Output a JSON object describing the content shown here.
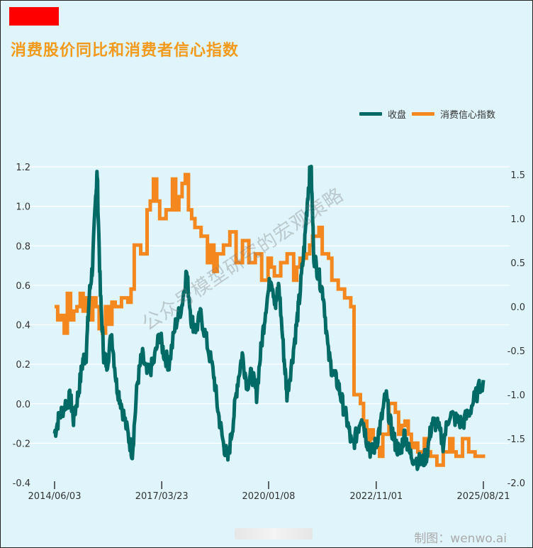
{
  "title": "消费股价同比和消费者信心指数",
  "footer": "制图：wenwo.ai",
  "watermark": "公众号模型研究的宏观策略",
  "colors": {
    "series1": "#006b66",
    "series2": "#f5871f",
    "title": "#f29a1c",
    "background": "#dff5fb",
    "badge": "#ff0000"
  },
  "chart_data": {
    "type": "line",
    "legend_position": "top-right",
    "grid": "horizontal",
    "x_ticks": [
      "2014/06/03",
      "2017/03/23",
      "2020/01/08",
      "2022/11/01",
      "2025/08/21"
    ],
    "y_left": {
      "ticks": [
        "1.2",
        "1.0",
        "0.8",
        "0.6",
        "0.4",
        "0.2",
        "0.0",
        "-0.2",
        "-0.4"
      ],
      "range": [
        -0.4,
        1.2
      ]
    },
    "y_right": {
      "ticks": [
        "1.5",
        "1.0",
        "0.5",
        "0.0",
        "-0.5",
        "-1.0",
        "-1.5",
        "-2.0"
      ],
      "range": [
        -2.0,
        1.6
      ]
    },
    "series": [
      {
        "name": "收盘",
        "axis": "left",
        "points": [
          [
            "2014/06/03",
            -0.15
          ],
          [
            "2014/07/15",
            -0.07
          ],
          [
            "2014/09/15",
            0.0
          ],
          [
            "2014/11/01",
            0.03
          ],
          [
            "2014/12/01",
            -0.08
          ],
          [
            "2015/01/15",
            0.05
          ],
          [
            "2015/03/01",
            0.22
          ],
          [
            "2015/04/01",
            0.25
          ],
          [
            "2015/05/01",
            0.55
          ],
          [
            "2015/06/01",
            0.7
          ],
          [
            "2015/07/01",
            1.05
          ],
          [
            "2015/07/15",
            1.17
          ],
          [
            "2015/08/15",
            0.55
          ],
          [
            "2015/09/15",
            0.25
          ],
          [
            "2015/10/15",
            0.2
          ],
          [
            "2015/12/01",
            0.35
          ],
          [
            "2016/01/15",
            0.1
          ],
          [
            "2016/03/01",
            0.0
          ],
          [
            "2016/05/01",
            -0.15
          ],
          [
            "2016/06/15",
            -0.25
          ],
          [
            "2016/08/01",
            0.1
          ],
          [
            "2016/09/15",
            0.25
          ],
          [
            "2016/11/01",
            0.15
          ],
          [
            "2017/01/01",
            0.2
          ],
          [
            "2017/03/01",
            0.35
          ],
          [
            "2017/04/15",
            0.25
          ],
          [
            "2017/06/01",
            0.2
          ],
          [
            "2017/08/01",
            0.4
          ],
          [
            "2017/10/01",
            0.5
          ],
          [
            "2017/11/15",
            0.67
          ],
          [
            "2018/01/01",
            0.42
          ],
          [
            "2018/02/15",
            0.38
          ],
          [
            "2018/04/01",
            0.45
          ],
          [
            "2018/06/01",
            0.3
          ],
          [
            "2018/08/01",
            0.15
          ],
          [
            "2018/09/15",
            -0.05
          ],
          [
            "2018/11/01",
            -0.2
          ],
          [
            "2018/12/15",
            -0.28
          ],
          [
            "2019/02/01",
            -0.1
          ],
          [
            "2019/03/15",
            0.1
          ],
          [
            "2019/05/01",
            0.25
          ],
          [
            "2019/06/15",
            0.1
          ],
          [
            "2019/08/01",
            0.15
          ],
          [
            "2019/09/15",
            0.05
          ],
          [
            "2019/11/01",
            0.3
          ],
          [
            "2019/12/15",
            0.5
          ],
          [
            "2020/02/01",
            0.65
          ],
          [
            "2020/03/15",
            0.5
          ],
          [
            "2020/04/15",
            0.6
          ],
          [
            "2020/06/01",
            0.25
          ],
          [
            "2020/07/01",
            0.05
          ],
          [
            "2020/08/15",
            0.2
          ],
          [
            "2020/10/01",
            0.4
          ],
          [
            "2020/11/01",
            0.55
          ],
          [
            "2020/12/15",
            0.8
          ],
          [
            "2021/01/15",
            1.05
          ],
          [
            "2021/02/15",
            1.22
          ],
          [
            "2021/03/15",
            0.75
          ],
          [
            "2021/05/01",
            0.65
          ],
          [
            "2021/06/15",
            0.55
          ],
          [
            "2021/08/01",
            0.25
          ],
          [
            "2021/09/15",
            0.15
          ],
          [
            "2021/11/01",
            0.1
          ],
          [
            "2021/12/15",
            0.0
          ],
          [
            "2022/02/01",
            -0.1
          ],
          [
            "2022/03/15",
            -0.22
          ],
          [
            "2022/05/01",
            -0.15
          ],
          [
            "2022/06/15",
            -0.05
          ],
          [
            "2022/08/01",
            -0.18
          ],
          [
            "2022/09/15",
            -0.25
          ],
          [
            "2022/11/01",
            -0.2
          ],
          [
            "2022/12/15",
            -0.1
          ],
          [
            "2023/02/01",
            0.05
          ],
          [
            "2023/03/15",
            -0.1
          ],
          [
            "2023/05/01",
            -0.2
          ],
          [
            "2023/06/15",
            -0.25
          ],
          [
            "2023/08/01",
            -0.15
          ],
          [
            "2023/09/15",
            -0.25
          ],
          [
            "2023/11/01",
            -0.28
          ],
          [
            "2024/01/15",
            -0.3
          ],
          [
            "2024/03/01",
            -0.25
          ],
          [
            "2024/04/15",
            -0.1
          ],
          [
            "2024/06/01",
            -0.1
          ],
          [
            "2024/08/01",
            -0.2
          ],
          [
            "2024/10/01",
            -0.05
          ],
          [
            "2024/12/01",
            -0.08
          ],
          [
            "2025/02/01",
            -0.1
          ],
          [
            "2025/04/01",
            -0.05
          ],
          [
            "2025/06/01",
            0.03
          ],
          [
            "2025/08/21",
            0.12
          ]
        ]
      },
      {
        "name": "消费信心指数",
        "axis": "right",
        "steps": [
          [
            "2014/06/03",
            0.0
          ],
          [
            "2014/07/03",
            -0.15
          ],
          [
            "2014/08/03",
            -0.1
          ],
          [
            "2014/09/03",
            -0.3
          ],
          [
            "2014/10/03",
            0.15
          ],
          [
            "2014/11/03",
            -0.15
          ],
          [
            "2014/12/03",
            -0.05
          ],
          [
            "2015/01/03",
            0.0
          ],
          [
            "2015/02/03",
            0.15
          ],
          [
            "2015/03/03",
            -0.05
          ],
          [
            "2015/04/03",
            0.1
          ],
          [
            "2015/05/03",
            -0.15
          ],
          [
            "2015/06/03",
            0.1
          ],
          [
            "2015/07/03",
            0.0
          ],
          [
            "2015/08/03",
            -0.25
          ],
          [
            "2015/09/03",
            -0.3
          ],
          [
            "2015/10/03",
            0.0
          ],
          [
            "2015/11/03",
            -0.2
          ],
          [
            "2015/12/03",
            0.05
          ],
          [
            "2016/01/03",
            0.0
          ],
          [
            "2016/03/03",
            0.1
          ],
          [
            "2016/05/03",
            0.05
          ],
          [
            "2016/06/03",
            0.2
          ],
          [
            "2016/07/03",
            0.7
          ],
          [
            "2016/09/03",
            0.6
          ],
          [
            "2016/11/03",
            1.1
          ],
          [
            "2016/12/03",
            1.2
          ],
          [
            "2017/01/03",
            1.45
          ],
          [
            "2017/02/03",
            1.2
          ],
          [
            "2017/03/03",
            1.0
          ],
          [
            "2017/04/03",
            1.0
          ],
          [
            "2017/05/03",
            1.1
          ],
          [
            "2017/07/03",
            1.45
          ],
          [
            "2017/08/03",
            1.1
          ],
          [
            "2017/09/03",
            1.25
          ],
          [
            "2017/10/03",
            1.4
          ],
          [
            "2017/11/03",
            1.5
          ],
          [
            "2017/12/03",
            1.1
          ],
          [
            "2018/01/03",
            1.0
          ],
          [
            "2018/02/03",
            0.9
          ],
          [
            "2018/04/03",
            0.8
          ],
          [
            "2018/06/03",
            0.5
          ],
          [
            "2018/07/03",
            0.7
          ],
          [
            "2018/08/03",
            0.4
          ],
          [
            "2018/09/03",
            0.6
          ],
          [
            "2018/11/03",
            0.7
          ],
          [
            "2019/01/03",
            0.85
          ],
          [
            "2019/03/03",
            0.5
          ],
          [
            "2019/05/03",
            0.75
          ],
          [
            "2019/07/03",
            0.5
          ],
          [
            "2019/09/03",
            0.6
          ],
          [
            "2019/11/03",
            0.3
          ],
          [
            "2020/01/03",
            0.55
          ],
          [
            "2020/02/03",
            0.45
          ],
          [
            "2020/03/03",
            0.35
          ],
          [
            "2020/05/03",
            0.5
          ],
          [
            "2020/07/03",
            0.6
          ],
          [
            "2020/09/03",
            0.3
          ],
          [
            "2020/10/03",
            0.45
          ],
          [
            "2020/11/03",
            0.55
          ],
          [
            "2021/01/03",
            0.6
          ],
          [
            "2021/02/03",
            0.7
          ],
          [
            "2021/03/03",
            0.8
          ],
          [
            "2021/05/03",
            0.9
          ],
          [
            "2021/06/03",
            0.6
          ],
          [
            "2021/08/03",
            0.55
          ],
          [
            "2021/09/03",
            0.3
          ],
          [
            "2021/11/03",
            0.2
          ],
          [
            "2021/12/03",
            0.2
          ],
          [
            "2022/01/03",
            0.1
          ],
          [
            "2022/03/03",
            0.0
          ],
          [
            "2022/04/03",
            -1.0
          ],
          [
            "2022/06/03",
            -1.1
          ],
          [
            "2022/07/03",
            -1.3
          ],
          [
            "2022/08/03",
            -1.55
          ],
          [
            "2022/09/03",
            -1.4
          ],
          [
            "2022/10/03",
            -1.5
          ],
          [
            "2022/11/03",
            -1.6
          ],
          [
            "2022/12/03",
            -1.7
          ],
          [
            "2023/01/03",
            -1.45
          ],
          [
            "2023/03/03",
            -1.1
          ],
          [
            "2023/05/03",
            -1.2
          ],
          [
            "2023/06/03",
            -1.45
          ],
          [
            "2023/07/03",
            -1.35
          ],
          [
            "2023/08/03",
            -1.3
          ],
          [
            "2023/09/03",
            -1.45
          ],
          [
            "2023/10/03",
            -1.6
          ],
          [
            "2023/11/03",
            -1.55
          ],
          [
            "2023/12/03",
            -1.65
          ],
          [
            "2024/02/03",
            -1.5
          ],
          [
            "2024/03/03",
            -1.65
          ],
          [
            "2024/04/03",
            -1.7
          ],
          [
            "2024/06/03",
            -1.8
          ],
          [
            "2024/08/03",
            -1.65
          ],
          [
            "2024/10/03",
            -1.5
          ],
          [
            "2024/11/03",
            -1.65
          ],
          [
            "2024/12/03",
            -1.7
          ],
          [
            "2025/02/03",
            -1.5
          ],
          [
            "2025/04/03",
            -1.65
          ],
          [
            "2025/06/03",
            -1.7
          ],
          [
            "2025/08/21",
            -1.72
          ]
        ]
      }
    ]
  }
}
